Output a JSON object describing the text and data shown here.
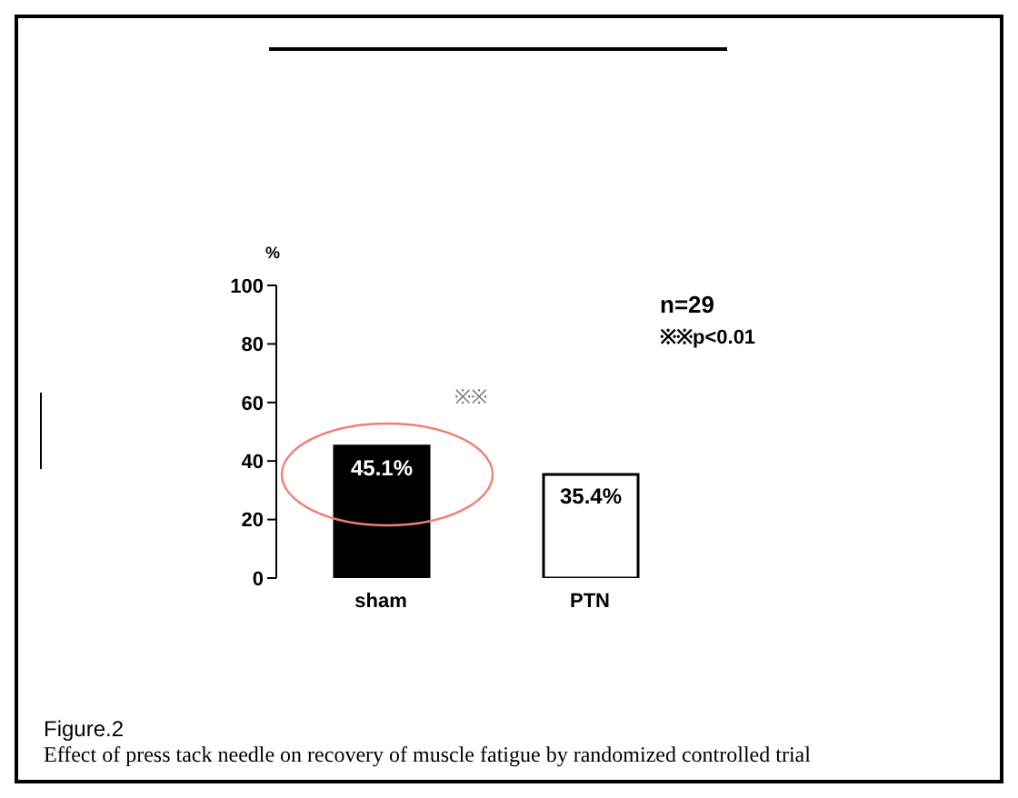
{
  "chart_data": {
    "type": "bar",
    "categories": [
      "sham",
      "PTN"
    ],
    "values": [
      45.1,
      35.4
    ],
    "colors": [
      "#000000",
      "#ffffff"
    ],
    "value_labels": [
      "45.1%",
      "35.4%"
    ],
    "ylabel": "%",
    "ylim": [
      0,
      100
    ],
    "yticks": [
      0,
      20,
      40,
      60,
      80,
      100
    ],
    "grid": false,
    "legend": false,
    "annotations": [
      "n=29",
      "※※p<0.01",
      "※※",
      "Figure.2",
      "Effect of press tack needle on recovery of muscle fatigue by randomized controlled trial"
    ]
  }
}
